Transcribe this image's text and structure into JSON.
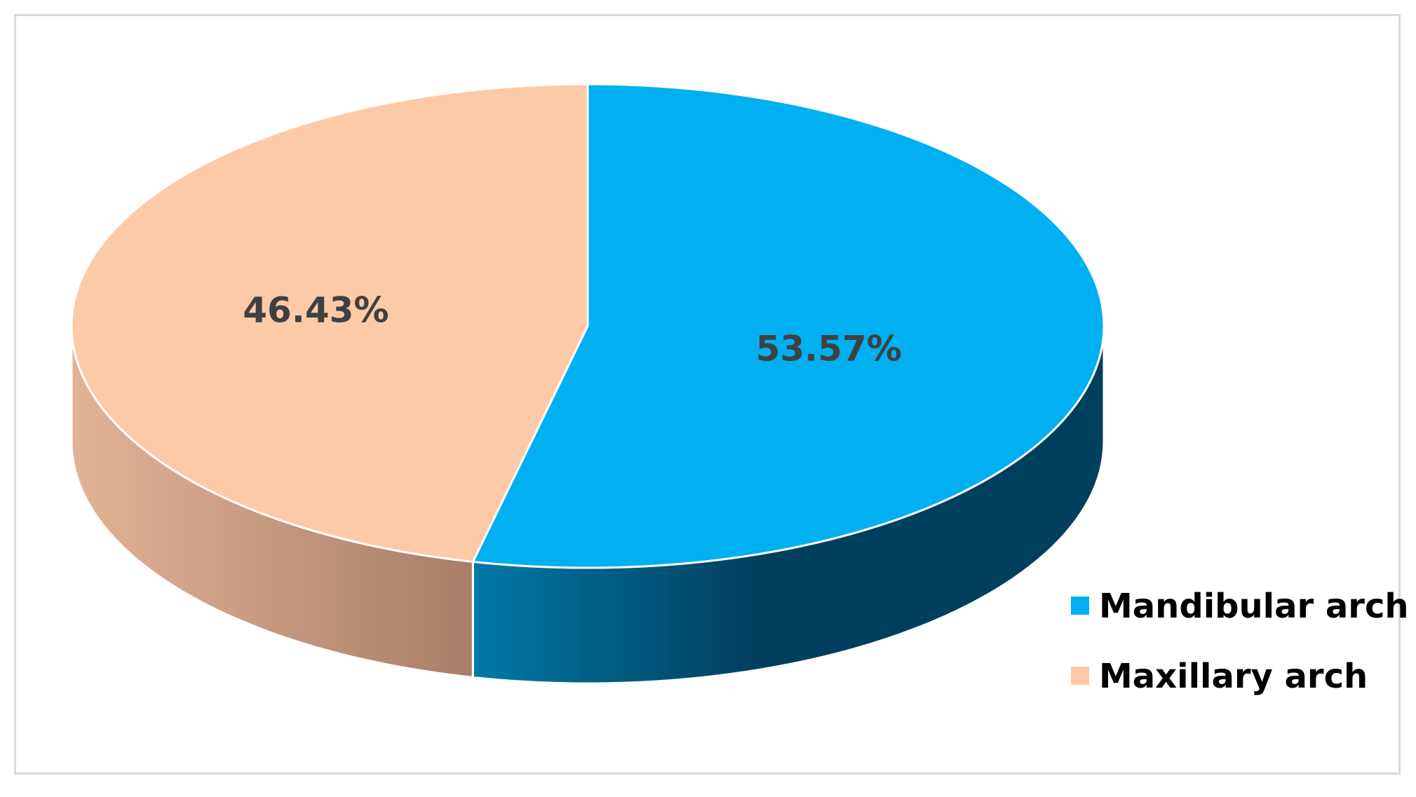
{
  "chart_data": {
    "type": "pie",
    "style": "3d",
    "title": "",
    "labels": [
      "Mandibular arch",
      "Maxillary arch"
    ],
    "values": [
      53.57,
      46.43
    ],
    "data_labels": [
      "53.57%",
      "46.43%"
    ],
    "colors": {
      "Mandibular arch": {
        "top": "#00b0f0",
        "side_dark": "#013f5e",
        "side_light": "#0079a8"
      },
      "Maxillary arch": {
        "top": "#fdcaa8",
        "side_dark": "#a97d68",
        "side_light": "#e3b394"
      }
    },
    "legend_position": "bottom-right"
  }
}
